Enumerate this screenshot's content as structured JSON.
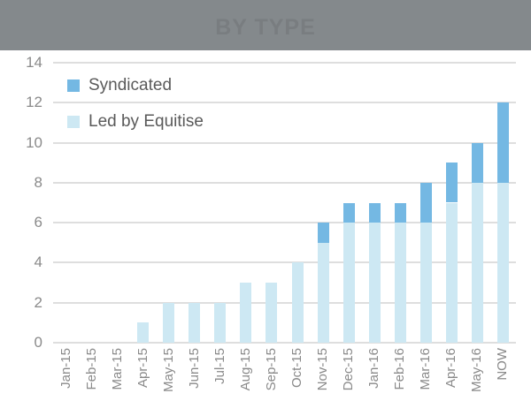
{
  "header": {
    "title": "BY TYPE"
  },
  "legend": {
    "items": [
      {
        "label": "Syndicated",
        "color": "#74B8E3"
      },
      {
        "label": "Led by Equitise",
        "color": "#CDE8F3"
      }
    ]
  },
  "colors": {
    "header_bg": "#84898C",
    "header_title": "#797D80",
    "gridline": "#DEDEDE",
    "axis_label": "#8A8A8A",
    "legend_text": "#5A5A5A",
    "syndicated": "#74B8E3",
    "led_by_equitise": "#CDE8F3"
  },
  "chart_data": {
    "type": "bar",
    "stacked": true,
    "title": "BY TYPE",
    "categories": [
      "Jan-15",
      "Feb-15",
      "Mar-15",
      "Apr-15",
      "May-15",
      "Jun-15",
      "Jul-15",
      "Aug-15",
      "Sep-15",
      "Oct-15",
      "Nov-15",
      "Dec-15",
      "Jan-16",
      "Feb-16",
      "Mar-16",
      "Apr-16",
      "May-16",
      "NOW"
    ],
    "series": [
      {
        "name": "Led by Equitise",
        "color": "#CDE8F3",
        "values": [
          0,
          0,
          0,
          1,
          2,
          2,
          2,
          3,
          3,
          4,
          5,
          6,
          6,
          6,
          6,
          7,
          8,
          8
        ]
      },
      {
        "name": "Syndicated",
        "color": "#74B8E3",
        "values": [
          0,
          0,
          0,
          0,
          0,
          0,
          0,
          0,
          0,
          0,
          1,
          1,
          1,
          1,
          2,
          2,
          2,
          4
        ]
      }
    ],
    "totals": [
      0,
      0,
      0,
      1,
      2,
      2,
      2,
      3,
      3,
      4,
      6,
      7,
      7,
      7,
      8,
      9,
      10,
      12
    ],
    "xlabel": "",
    "ylabel": "",
    "ylim": [
      0,
      14
    ],
    "yticks": [
      0,
      2,
      4,
      6,
      8,
      10,
      12,
      14
    ],
    "grid": true,
    "legend_position": "top-left"
  }
}
